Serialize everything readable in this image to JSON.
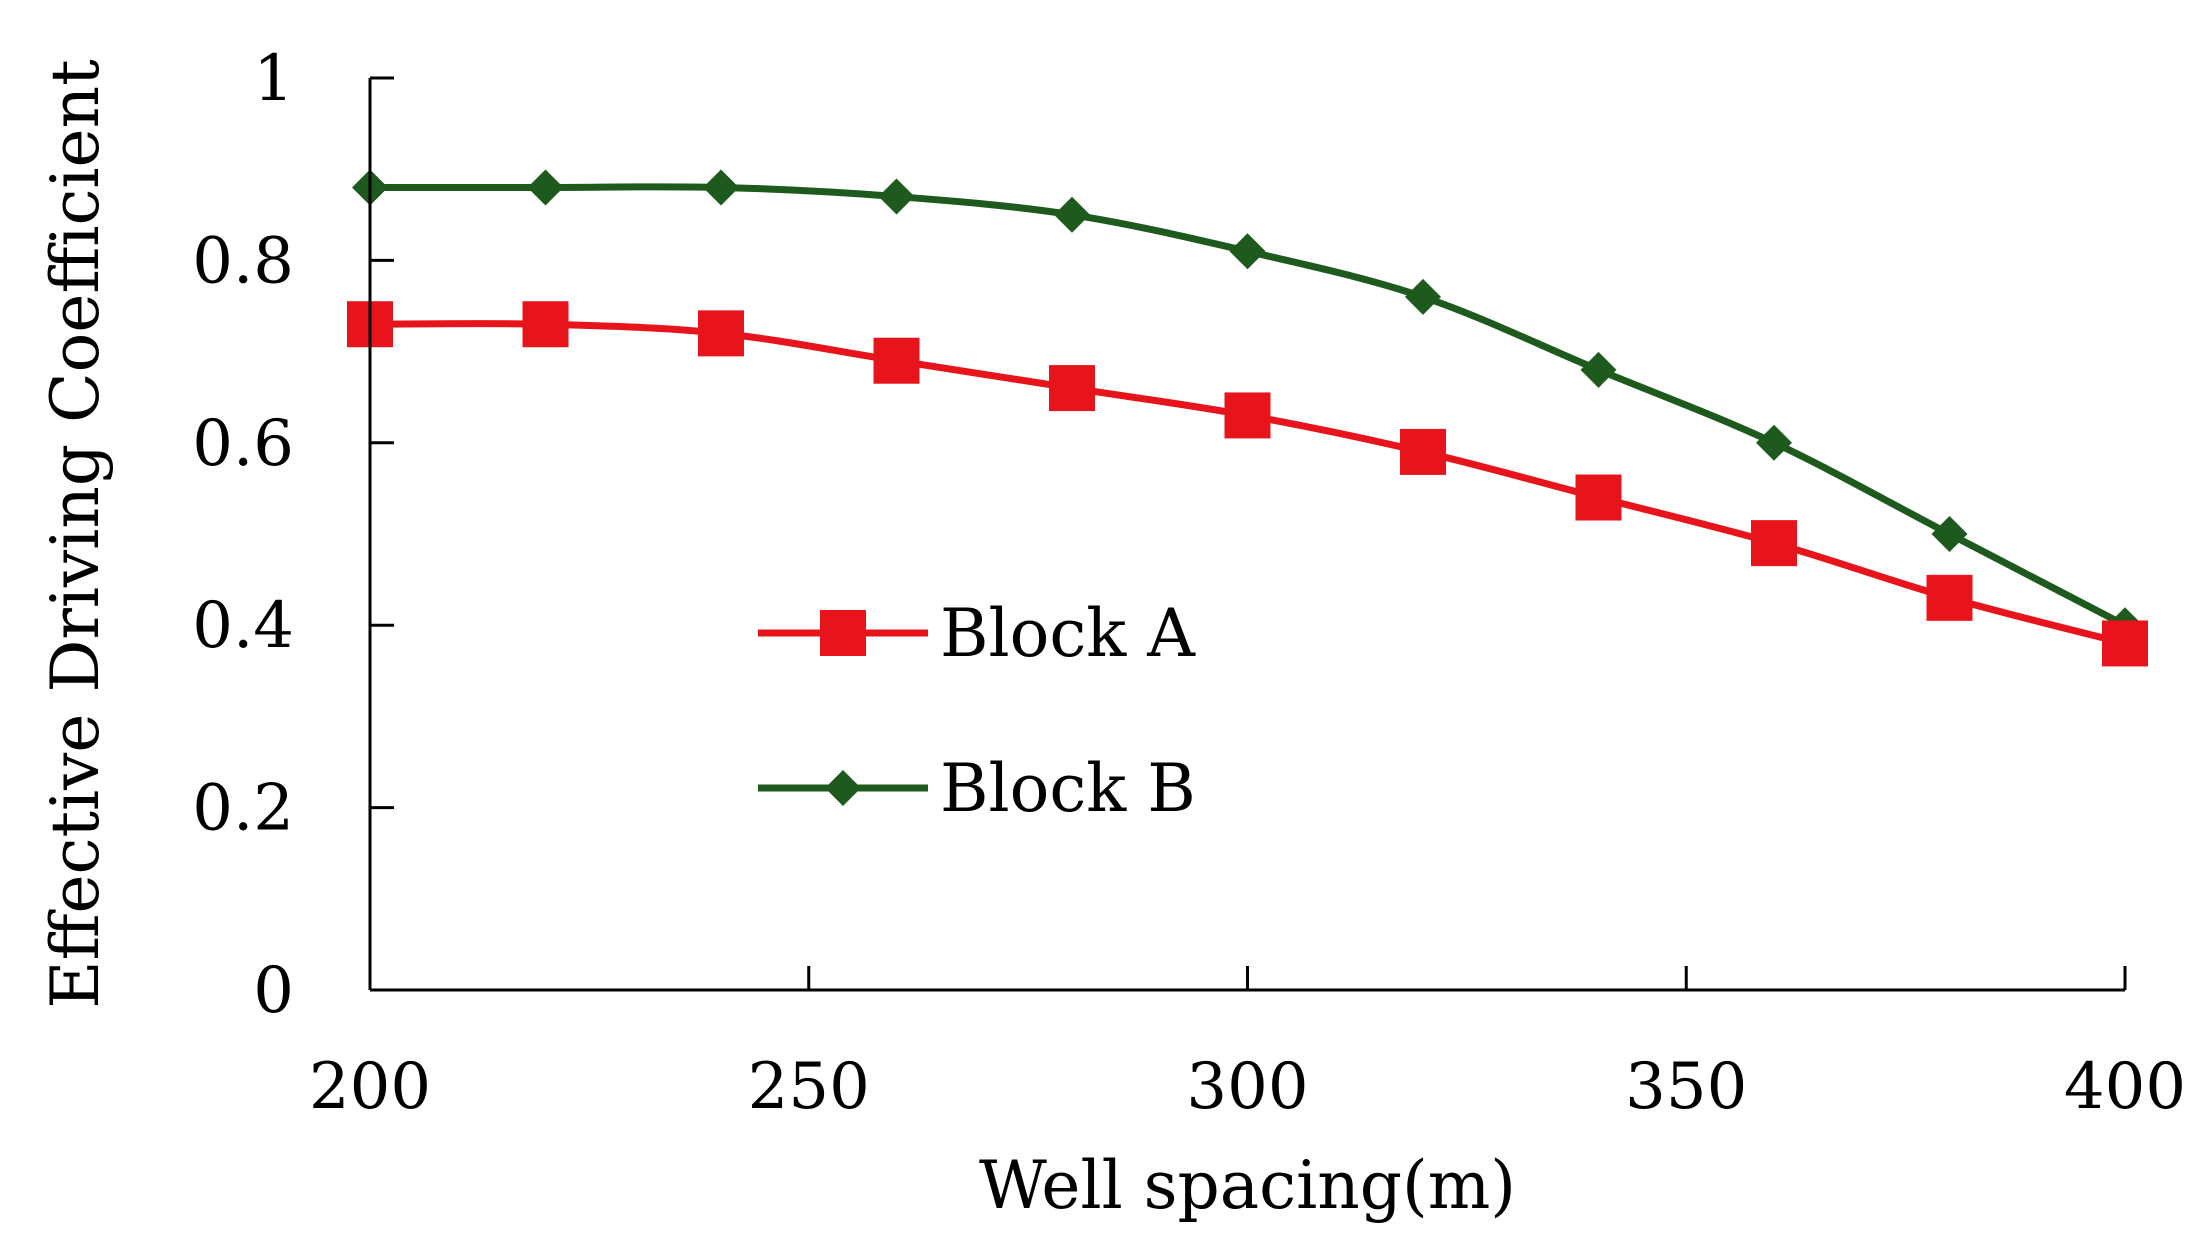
{
  "chart_data": {
    "type": "line",
    "title": "",
    "xlabel": "Well spacing(m)",
    "ylabel": "Effective Driving Coefficient",
    "xlim": [
      200,
      400
    ],
    "ylim": [
      0,
      1
    ],
    "xticks": [
      200,
      250,
      300,
      350,
      400
    ],
    "yticks": [
      0,
      0.2,
      0.4,
      0.6,
      0.8,
      1
    ],
    "ytick_labels": [
      "0",
      "0.2",
      "0.4",
      "0.6",
      "0.8",
      "1"
    ],
    "grid": false,
    "legend_position": "center",
    "x": [
      200,
      220,
      240,
      260,
      280,
      300,
      320,
      340,
      360,
      380,
      400
    ],
    "series": [
      {
        "name": "Block A",
        "marker": "square",
        "color": "#e8141b",
        "values": [
          0.73,
          0.73,
          0.72,
          0.69,
          0.66,
          0.63,
          0.59,
          0.54,
          0.49,
          0.43,
          0.38
        ]
      },
      {
        "name": "Block B",
        "marker": "diamond",
        "color": "#1e5a1e",
        "values": [
          0.88,
          0.88,
          0.88,
          0.87,
          0.85,
          0.81,
          0.76,
          0.68,
          0.6,
          0.5,
          0.4
        ]
      }
    ]
  }
}
